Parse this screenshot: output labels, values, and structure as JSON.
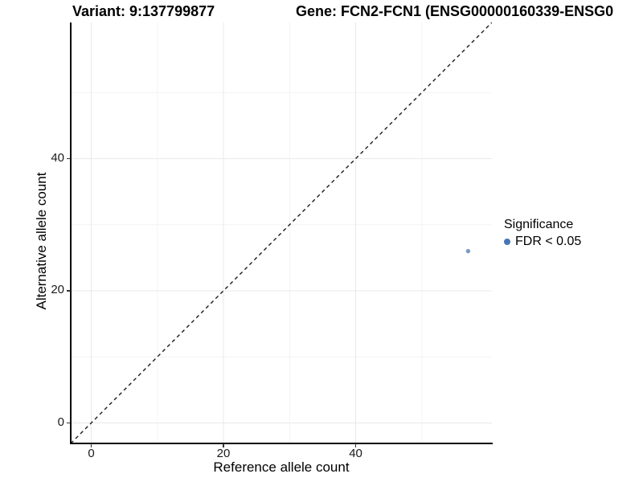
{
  "titles": {
    "variant": "Variant: 9:137799877",
    "gene": "Gene: FCN2-FCN1 (ENSG00000160339-ENSG0"
  },
  "axes": {
    "x_label": "Reference allele count",
    "y_label": "Alternative allele count"
  },
  "legend": {
    "title": "Significance",
    "items": [
      {
        "label": "FDR < 0.05",
        "color": "#4575b4"
      }
    ]
  },
  "chart_data": {
    "type": "scatter",
    "titles": [
      "Variant: 9:137799877",
      "Gene: FCN2-FCN1 (ENSG00000160339-ENSG0"
    ],
    "xlabel": "Reference allele count",
    "ylabel": "Alternative allele count",
    "xlim": [
      -3.1,
      60.6
    ],
    "ylim": [
      -3.1,
      60.6
    ],
    "major_ticks": [
      0,
      20,
      40
    ],
    "minor_ticks": [
      10,
      30,
      50
    ],
    "series": [
      {
        "name": "FDR < 0.05",
        "color": "#4575b4",
        "points": [
          {
            "x": 57,
            "y": 26
          }
        ]
      }
    ],
    "identity_line": {
      "style": "dashed",
      "equation": "y = x"
    },
    "grid": {
      "major": true,
      "minor": true
    },
    "legend_position": "right",
    "point_opacity": 0.72,
    "point_radius_px": 2.7,
    "colors": {
      "point": "#4575b4",
      "grid_major": "#e9e9e9",
      "grid_minor": "#f4f4f4",
      "axis_line": "#000000",
      "dashed_line": "#1a1a1a"
    }
  }
}
